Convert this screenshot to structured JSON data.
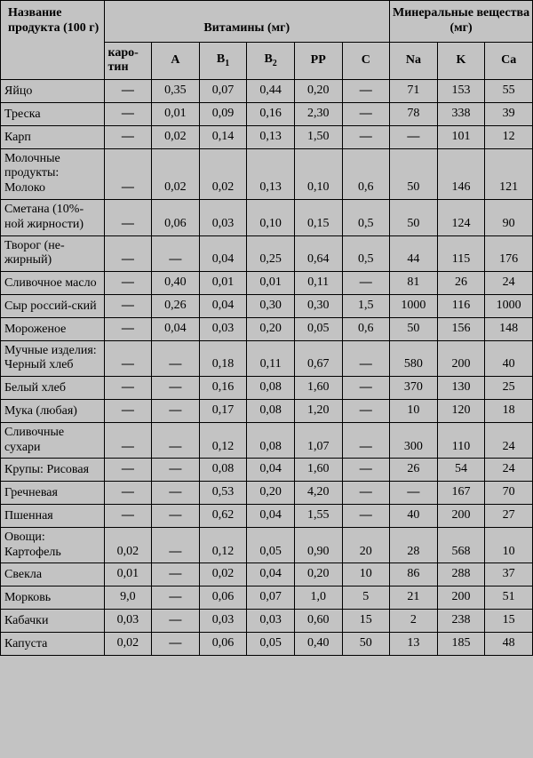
{
  "headers": {
    "product": "Название продукта (100 г)",
    "vitamins": "Витамины (мг)",
    "minerals": "Минеральные вещества (мг)",
    "karotin": "каро-тин",
    "A": "A",
    "B1": "B",
    "B1_sub": "1",
    "B2": "B",
    "B2_sub": "2",
    "PP": "PP",
    "C": "C",
    "Na": "Na",
    "K": "K",
    "Ca": "Ca"
  },
  "rows": [
    {
      "name": "Яйцо",
      "karotin": "—",
      "A": "0,35",
      "B1": "0,07",
      "B2": "0,44",
      "PP": "0,20",
      "C": "—",
      "Na": "71",
      "K": "153",
      "Ca": "55"
    },
    {
      "name": "Треска",
      "karotin": "—",
      "A": "0,01",
      "B1": "0,09",
      "B2": "0,16",
      "PP": "2,30",
      "C": "—",
      "Na": "78",
      "K": "338",
      "Ca": "39"
    },
    {
      "name": "Карп",
      "karotin": "—",
      "A": "0,02",
      "B1": "0,14",
      "B2": "0,13",
      "PP": "1,50",
      "C": "—",
      "Na": "—",
      "K": "101",
      "Ca": "12"
    },
    {
      "name": "Молочные продукты: Молоко",
      "karotin": "—",
      "A": "0,02",
      "B1": "0,02",
      "B2": "0,13",
      "PP": "0,10",
      "C": "0,6",
      "Na": "50",
      "K": "146",
      "Ca": "121"
    },
    {
      "name": "Сметана (10%-ной жирности)",
      "karotin": "—",
      "A": "0,06",
      "B1": "0,03",
      "B2": "0,10",
      "PP": "0,15",
      "C": "0,5",
      "Na": "50",
      "K": "124",
      "Ca": "90"
    },
    {
      "name": "Творог (не-жирный)",
      "karotin": "—",
      "A": "—",
      "B1": "0,04",
      "B2": "0,25",
      "PP": "0,64",
      "C": "0,5",
      "Na": "44",
      "K": "115",
      "Ca": "176"
    },
    {
      "name": "Сливочное масло",
      "karotin": "—",
      "A": "0,40",
      "B1": "0,01",
      "B2": "0,01",
      "PP": "0,11",
      "C": "—",
      "Na": "81",
      "K": "26",
      "Ca": "24"
    },
    {
      "name": "Сыр россий-ский",
      "karotin": "—",
      "A": "0,26",
      "B1": "0,04",
      "B2": "0,30",
      "PP": "0,30",
      "C": "1,5",
      "Na": "1000",
      "K": "116",
      "Ca": "1000"
    },
    {
      "name": "Мороженое",
      "karotin": "—",
      "A": "0,04",
      "B1": "0,03",
      "B2": "0,20",
      "PP": "0,05",
      "C": "0,6",
      "Na": "50",
      "K": "156",
      "Ca": "148"
    },
    {
      "name": "Мучные изделия: Черный хлеб",
      "karotin": "—",
      "A": "—",
      "B1": "0,18",
      "B2": "0,11",
      "PP": "0,67",
      "C": "—",
      "Na": "580",
      "K": "200",
      "Ca": "40"
    },
    {
      "name": "Белый хлеб",
      "karotin": "—",
      "A": "—",
      "B1": "0,16",
      "B2": "0,08",
      "PP": "1,60",
      "C": "—",
      "Na": "370",
      "K": "130",
      "Ca": "25"
    },
    {
      "name": "Мука (любая)",
      "karotin": "—",
      "A": "—",
      "B1": "0,17",
      "B2": "0,08",
      "PP": "1,20",
      "C": "—",
      "Na": "10",
      "K": "120",
      "Ca": "18"
    },
    {
      "name": "Сливочные сухари",
      "karotin": "—",
      "A": "—",
      "B1": "0,12",
      "B2": "0,08",
      "PP": "1,07",
      "C": "—",
      "Na": "300",
      "K": "110",
      "Ca": "24"
    },
    {
      "name": "Крупы: Рисовая",
      "karotin": "—",
      "A": "—",
      "B1": "0,08",
      "B2": "0,04",
      "PP": "1,60",
      "C": "—",
      "Na": "26",
      "K": "54",
      "Ca": "24"
    },
    {
      "name": "Гречневая",
      "karotin": "—",
      "A": "—",
      "B1": "0,53",
      "B2": "0,20",
      "PP": "4,20",
      "C": "—",
      "Na": "—",
      "K": "167",
      "Ca": "70"
    },
    {
      "name": "Пшенная",
      "karotin": "—",
      "A": "—",
      "B1": "0,62",
      "B2": "0,04",
      "PP": "1,55",
      "C": "—",
      "Na": "40",
      "K": "200",
      "Ca": "27"
    },
    {
      "name": "Овощи: Картофель",
      "karotin": "0,02",
      "A": "—",
      "B1": "0,12",
      "B2": "0,05",
      "PP": "0,90",
      "C": "20",
      "Na": "28",
      "K": "568",
      "Ca": "10"
    },
    {
      "name": "Свекла",
      "karotin": "0,01",
      "A": "—",
      "B1": "0,02",
      "B2": "0,04",
      "PP": "0,20",
      "C": "10",
      "Na": "86",
      "K": "288",
      "Ca": "37"
    },
    {
      "name": "Морковь",
      "karotin": "9,0",
      "A": "—",
      "B1": "0,06",
      "B2": "0,07",
      "PP": "1,0",
      "C": "5",
      "Na": "21",
      "K": "200",
      "Ca": "51"
    },
    {
      "name": "Кабачки",
      "karotin": "0,03",
      "A": "—",
      "B1": "0,03",
      "B2": "0,03",
      "PP": "0,60",
      "C": "15",
      "Na": "2",
      "K": "238",
      "Ca": "15"
    },
    {
      "name": "Капуста",
      "karotin": "0,02",
      "A": "—",
      "B1": "0,06",
      "B2": "0,05",
      "PP": "0,40",
      "C": "50",
      "Na": "13",
      "K": "185",
      "Ca": "48"
    }
  ],
  "style": {
    "background_color": "#c3c3c3",
    "border_color": "#000000",
    "font_family": "Times New Roman",
    "header_fontsize": 14,
    "cell_fontsize": 14
  }
}
